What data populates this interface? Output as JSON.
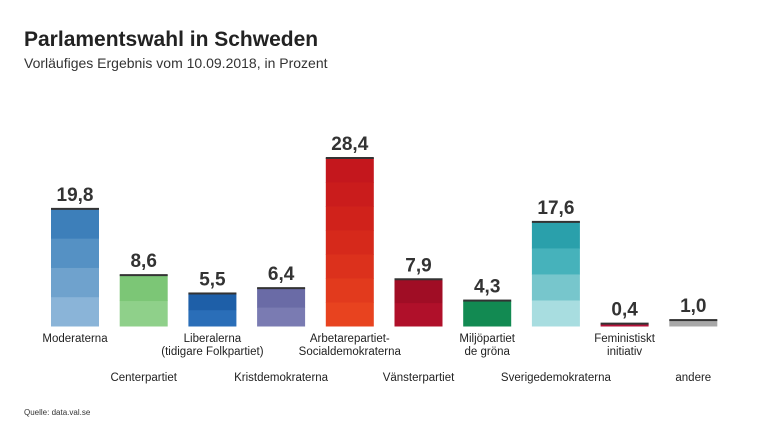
{
  "header": {
    "title": "Parlamentswahl in Schweden",
    "subtitle": "Vorläufiges Ergebnis vom 10.09.2018, in Prozent"
  },
  "footer": {
    "source": "Quelle: data.val.se"
  },
  "chart_data": {
    "type": "bar",
    "title": "Parlamentswahl in Schweden",
    "subtitle": "Vorläufiges Ergebnis vom 10.09.2018, in Prozent",
    "categories": [
      [
        "Moderaterna"
      ],
      [
        "Centerpartiet"
      ],
      [
        "Liberalerna",
        "(tidigare Folkpartiet)"
      ],
      [
        "Kristdemokraterna"
      ],
      [
        "Arbetarepartiet-",
        "Socialdemokraterna"
      ],
      [
        "Vänsterpartiet"
      ],
      [
        "Miljöpartiet",
        "de gröna"
      ],
      [
        "Sverigedemokraterna"
      ],
      [
        "Feministiskt",
        "initiativ"
      ],
      [
        "andere"
      ]
    ],
    "values": [
      19.8,
      8.6,
      5.5,
      6.4,
      28.4,
      7.9,
      4.3,
      17.6,
      0.4,
      1.0
    ],
    "value_labels": [
      "19,8",
      "8,6",
      "5,5",
      "6,4",
      "28,4",
      "7,9",
      "4,3",
      "17,6",
      "0,4",
      "1,0"
    ],
    "label_level": [
      "high",
      "low",
      "high",
      "low",
      "high",
      "low",
      "high",
      "low",
      "high",
      "low"
    ],
    "ylim": [
      0,
      30
    ],
    "grid": false,
    "legend": "none",
    "colors": {
      "moderaterna": [
        "#8ab4d8",
        "#6fa2cd",
        "#5591c4",
        "#3d7fba"
      ],
      "centerpartiet": [
        "#8fd08a",
        "#7cc676"
      ],
      "liberalerna": [
        "#2a6eb8",
        "#1e5fa8"
      ],
      "kristdemokraterna": [
        "#7a7bb2",
        "#6a6ba6"
      ],
      "socialdemokraterna": [
        "#e8431f",
        "#e23a1d",
        "#dc311c",
        "#d6291b",
        "#d0221b",
        "#ca1c1c",
        "#c4171d"
      ],
      "vansterpartiet": [
        "#b0102a",
        "#a00d25"
      ],
      "miljopartiet": [
        "#128a52"
      ],
      "sverigedemokraterna": [
        "#a8dde0",
        "#77c6cc",
        "#46b2bb",
        "#2aa0ab"
      ],
      "feministiskt": [
        "#b5123a"
      ],
      "andere": [
        "#a8a8a8"
      ],
      "topline": "#333333"
    }
  }
}
